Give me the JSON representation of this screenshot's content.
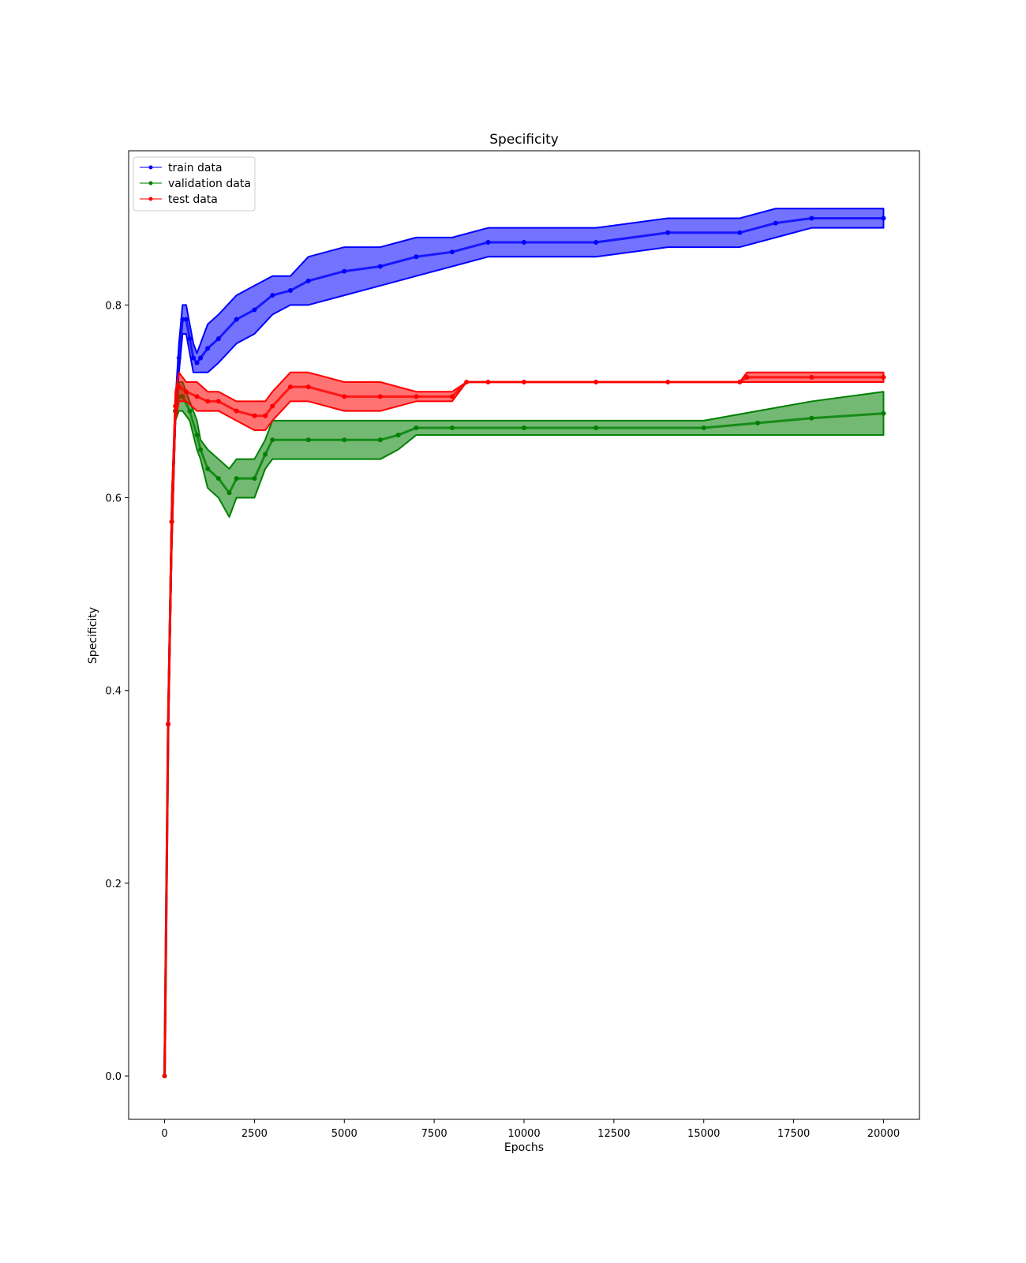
{
  "chart_data": {
    "type": "line",
    "title": "Specificity",
    "xlabel": "Epochs",
    "ylabel": "Specificity",
    "xlim": [
      -1000,
      21000
    ],
    "ylim": [
      -0.045,
      0.96
    ],
    "x_ticks": [
      0,
      2500,
      5000,
      7500,
      10000,
      12500,
      15000,
      17500,
      20000
    ],
    "y_ticks": [
      0.0,
      0.2,
      0.4,
      0.6,
      0.8
    ],
    "grid": false,
    "legend_position": "top-left",
    "series": [
      {
        "name": "train data",
        "color": "#0000ff",
        "band": [
          [
            0,
            0.0,
            0.0
          ],
          [
            100,
            0.35,
            0.38
          ],
          [
            200,
            0.55,
            0.6
          ],
          [
            300,
            0.68,
            0.7
          ],
          [
            400,
            0.73,
            0.76
          ],
          [
            500,
            0.77,
            0.8
          ],
          [
            600,
            0.77,
            0.8
          ],
          [
            700,
            0.75,
            0.78
          ],
          [
            800,
            0.73,
            0.76
          ],
          [
            900,
            0.73,
            0.75
          ],
          [
            1000,
            0.73,
            0.76
          ],
          [
            1200,
            0.73,
            0.78
          ],
          [
            1500,
            0.74,
            0.79
          ],
          [
            2000,
            0.76,
            0.81
          ],
          [
            2500,
            0.77,
            0.82
          ],
          [
            3000,
            0.79,
            0.83
          ],
          [
            3500,
            0.8,
            0.83
          ],
          [
            4000,
            0.8,
            0.85
          ],
          [
            5000,
            0.81,
            0.86
          ],
          [
            6000,
            0.82,
            0.86
          ],
          [
            7000,
            0.83,
            0.87
          ],
          [
            8000,
            0.84,
            0.87
          ],
          [
            9000,
            0.85,
            0.88
          ],
          [
            10000,
            0.85,
            0.88
          ],
          [
            12000,
            0.85,
            0.88
          ],
          [
            14000,
            0.86,
            0.89
          ],
          [
            16000,
            0.86,
            0.89
          ],
          [
            17000,
            0.87,
            0.9
          ],
          [
            18000,
            0.88,
            0.9
          ],
          [
            20000,
            0.88,
            0.9
          ]
        ]
      },
      {
        "name": "validation data",
        "color": "#008000",
        "band": [
          [
            0,
            0.0,
            0.0
          ],
          [
            100,
            0.35,
            0.38
          ],
          [
            200,
            0.55,
            0.6
          ],
          [
            300,
            0.68,
            0.7
          ],
          [
            400,
            0.69,
            0.72
          ],
          [
            500,
            0.69,
            0.72
          ],
          [
            700,
            0.68,
            0.7
          ],
          [
            900,
            0.65,
            0.68
          ],
          [
            1000,
            0.64,
            0.66
          ],
          [
            1200,
            0.61,
            0.65
          ],
          [
            1500,
            0.6,
            0.64
          ],
          [
            1800,
            0.58,
            0.63
          ],
          [
            2000,
            0.6,
            0.64
          ],
          [
            2500,
            0.6,
            0.64
          ],
          [
            2800,
            0.63,
            0.66
          ],
          [
            3000,
            0.64,
            0.68
          ],
          [
            4000,
            0.64,
            0.68
          ],
          [
            5000,
            0.64,
            0.68
          ],
          [
            6000,
            0.64,
            0.68
          ],
          [
            6500,
            0.65,
            0.68
          ],
          [
            7000,
            0.665,
            0.68
          ],
          [
            8000,
            0.665,
            0.68
          ],
          [
            10000,
            0.665,
            0.68
          ],
          [
            12000,
            0.665,
            0.68
          ],
          [
            15000,
            0.665,
            0.68
          ],
          [
            16500,
            0.665,
            0.69
          ],
          [
            18000,
            0.665,
            0.7
          ],
          [
            20000,
            0.665,
            0.71
          ]
        ]
      },
      {
        "name": "test data",
        "color": "#ff0000",
        "band": [
          [
            0,
            0.0,
            0.0
          ],
          [
            100,
            0.35,
            0.38
          ],
          [
            200,
            0.55,
            0.6
          ],
          [
            300,
            0.68,
            0.71
          ],
          [
            400,
            0.7,
            0.73
          ],
          [
            600,
            0.7,
            0.72
          ],
          [
            900,
            0.69,
            0.72
          ],
          [
            1200,
            0.69,
            0.71
          ],
          [
            1500,
            0.69,
            0.71
          ],
          [
            2000,
            0.68,
            0.7
          ],
          [
            2500,
            0.67,
            0.7
          ],
          [
            2800,
            0.67,
            0.7
          ],
          [
            3000,
            0.68,
            0.71
          ],
          [
            3500,
            0.7,
            0.73
          ],
          [
            4000,
            0.7,
            0.73
          ],
          [
            5000,
            0.69,
            0.72
          ],
          [
            6000,
            0.69,
            0.72
          ],
          [
            7000,
            0.7,
            0.71
          ],
          [
            8000,
            0.7,
            0.71
          ],
          [
            8400,
            0.72,
            0.72
          ],
          [
            9000,
            0.72,
            0.72
          ],
          [
            10000,
            0.72,
            0.72
          ],
          [
            12000,
            0.72,
            0.72
          ],
          [
            14000,
            0.72,
            0.72
          ],
          [
            16000,
            0.72,
            0.72
          ],
          [
            16200,
            0.72,
            0.73
          ],
          [
            18000,
            0.72,
            0.73
          ],
          [
            20000,
            0.72,
            0.73
          ]
        ]
      }
    ]
  }
}
